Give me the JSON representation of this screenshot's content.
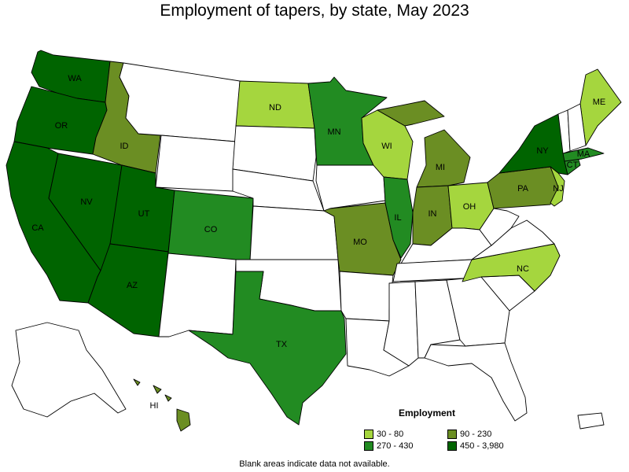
{
  "title": "Employment of tapers, by state, May 2023",
  "legend": {
    "title": "Employment",
    "items": [
      {
        "label": "30 - 80",
        "color": "#a5d63e"
      },
      {
        "label": "90 - 230",
        "color": "#6b8e23"
      },
      {
        "label": "270 - 430",
        "color": "#228b22"
      },
      {
        "label": "450 - 3,980",
        "color": "#006400"
      }
    ]
  },
  "footnote": "Blank areas indicate data not available.",
  "colors": {
    "blank": "#ffffff"
  },
  "states": [
    {
      "abbr": "WA",
      "tier": 3
    },
    {
      "abbr": "OR",
      "tier": 3
    },
    {
      "abbr": "CA",
      "tier": 3
    },
    {
      "abbr": "NV",
      "tier": 3
    },
    {
      "abbr": "ID",
      "tier": 1
    },
    {
      "abbr": "MT",
      "tier": null
    },
    {
      "abbr": "WY",
      "tier": null
    },
    {
      "abbr": "UT",
      "tier": 3
    },
    {
      "abbr": "AZ",
      "tier": 3
    },
    {
      "abbr": "CO",
      "tier": 2
    },
    {
      "abbr": "NM",
      "tier": null
    },
    {
      "abbr": "ND",
      "tier": 0
    },
    {
      "abbr": "SD",
      "tier": null
    },
    {
      "abbr": "NE",
      "tier": null
    },
    {
      "abbr": "KS",
      "tier": null
    },
    {
      "abbr": "OK",
      "tier": null
    },
    {
      "abbr": "TX",
      "tier": 2
    },
    {
      "abbr": "MN",
      "tier": 2
    },
    {
      "abbr": "IA",
      "tier": null
    },
    {
      "abbr": "MO",
      "tier": 1
    },
    {
      "abbr": "AR",
      "tier": null
    },
    {
      "abbr": "LA",
      "tier": null
    },
    {
      "abbr": "WI",
      "tier": 0
    },
    {
      "abbr": "IL",
      "tier": 2
    },
    {
      "abbr": "MI",
      "tier": 1
    },
    {
      "abbr": "IN",
      "tier": 1
    },
    {
      "abbr": "OH",
      "tier": 0
    },
    {
      "abbr": "KY",
      "tier": null
    },
    {
      "abbr": "TN",
      "tier": null
    },
    {
      "abbr": "MS",
      "tier": null
    },
    {
      "abbr": "AL",
      "tier": null
    },
    {
      "abbr": "GA",
      "tier": null
    },
    {
      "abbr": "FL",
      "tier": null
    },
    {
      "abbr": "SC",
      "tier": null
    },
    {
      "abbr": "NC",
      "tier": 0
    },
    {
      "abbr": "VA",
      "tier": null
    },
    {
      "abbr": "WV",
      "tier": null
    },
    {
      "abbr": "PA",
      "tier": 1
    },
    {
      "abbr": "NY",
      "tier": 3
    },
    {
      "abbr": "NJ",
      "tier": 0
    },
    {
      "abbr": "CT",
      "tier": 2
    },
    {
      "abbr": "MA",
      "tier": 2
    },
    {
      "abbr": "ME",
      "tier": 0
    },
    {
      "abbr": "VT",
      "tier": null
    },
    {
      "abbr": "NH",
      "tier": null
    },
    {
      "abbr": "AK",
      "tier": null
    },
    {
      "abbr": "HI",
      "tier": 1
    },
    {
      "abbr": "PR",
      "tier": null
    }
  ]
}
